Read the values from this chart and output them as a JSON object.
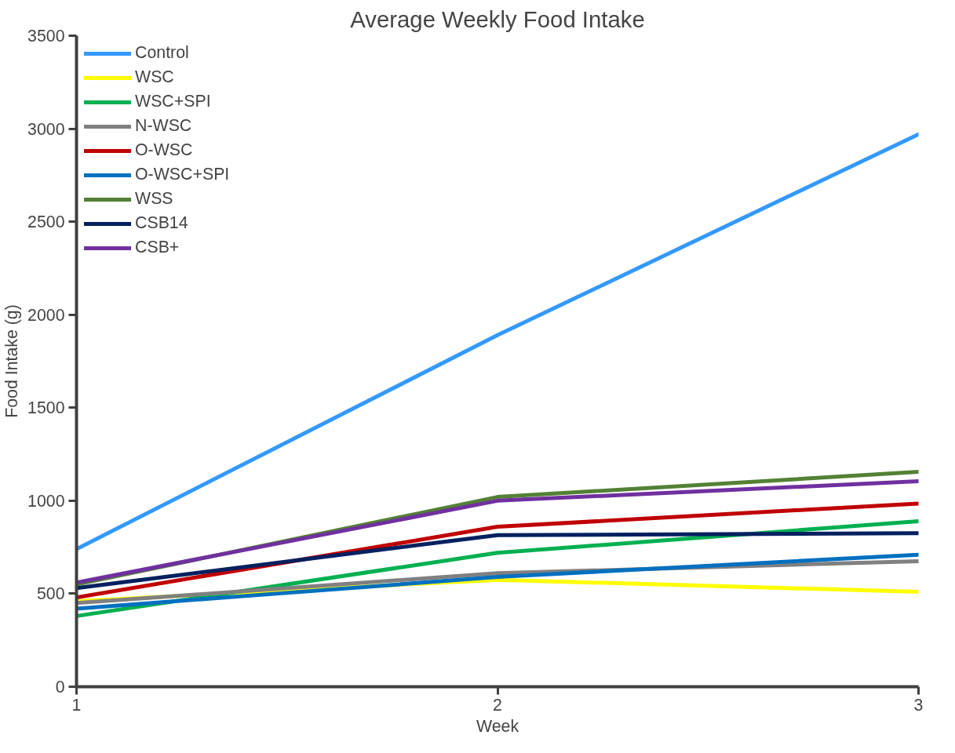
{
  "chart_data": {
    "type": "line",
    "title": "Average Weekly Food Intake",
    "xlabel": "Week",
    "ylabel": "Food Intake (g)",
    "x": [
      1,
      2,
      3
    ],
    "xlim": [
      1,
      3
    ],
    "xticks": [
      1,
      2,
      3
    ],
    "ylim": [
      0,
      3500
    ],
    "yticks": [
      0,
      500,
      1000,
      1500,
      2000,
      2500,
      3000,
      3500
    ],
    "grid": false,
    "legend": "top left",
    "marker": "none",
    "line_style": "solid",
    "series": [
      {
        "name": "Control",
        "color": "#3399ff",
        "values": [
          740,
          1890,
          2970
        ]
      },
      {
        "name": "WSC",
        "color": "#ffff00",
        "values": [
          460,
          575,
          510
        ]
      },
      {
        "name": "WSC+SPI",
        "color": "#00b050",
        "values": [
          380,
          720,
          890
        ]
      },
      {
        "name": "N-WSC",
        "color": "#808080",
        "values": [
          450,
          610,
          675
        ]
      },
      {
        "name": "O-WSC",
        "color": "#c00000",
        "values": [
          480,
          860,
          985
        ]
      },
      {
        "name": "O-WSC+SPI",
        "color": "#0070c0",
        "values": [
          420,
          590,
          710
        ]
      },
      {
        "name": "WSS",
        "color": "#538135",
        "values": [
          550,
          1020,
          1155
        ]
      },
      {
        "name": "CSB14",
        "color": "#002060",
        "values": [
          530,
          815,
          825
        ]
      },
      {
        "name": "CSB+",
        "color": "#7030a0",
        "values": [
          560,
          1000,
          1105
        ]
      }
    ]
  }
}
